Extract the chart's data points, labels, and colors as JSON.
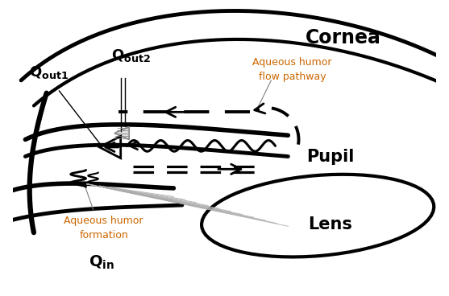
{
  "bg_color": "#ffffff",
  "text_color": "#000000",
  "orange_color": "#cc6600",
  "gray_color": "#aaaaaa",
  "cornea_label": "Cornea",
  "lens_label": "Lens",
  "pupil_label": "Pupil",
  "aq_humor_flow": "Aqueous humor\nflow pathway",
  "aq_humor_form": "Aqueous humor\nformation",
  "figsize": [
    5.57,
    3.68
  ],
  "dpi": 100,
  "xlim": [
    0,
    10
  ],
  "ylim": [
    0,
    7
  ]
}
